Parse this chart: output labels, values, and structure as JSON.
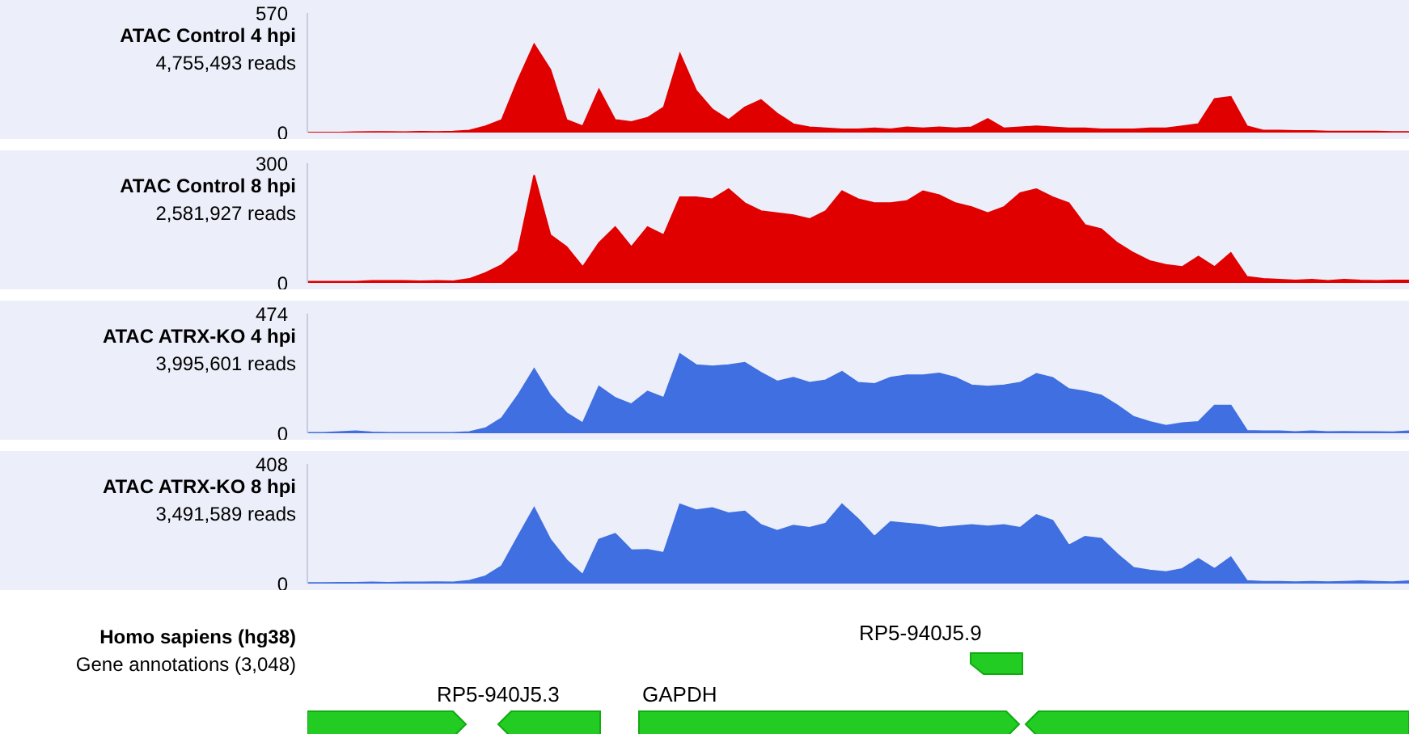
{
  "chart_data": [
    {
      "type": "area",
      "title": "ATAC Control 4 hpi",
      "subtitle": "4,755,493 reads",
      "categories": [
        null,
        null,
        null,
        null,
        null,
        null,
        null,
        null,
        null,
        null,
        null,
        null,
        null,
        null,
        null,
        null,
        null,
        null,
        null,
        null,
        null,
        null,
        null,
        null,
        null,
        null,
        null,
        null,
        null,
        null,
        null,
        null,
        null,
        null,
        null,
        null,
        null,
        null,
        null,
        null,
        null,
        null,
        null,
        null,
        null,
        null,
        null,
        null,
        null,
        null,
        null,
        null,
        null,
        null,
        null,
        null,
        null,
        null,
        null,
        null,
        null,
        null,
        null,
        null,
        null,
        null,
        null,
        null,
        null
      ],
      "series": [
        {
          "color": "#e00000",
          "values": [
            0,
            0,
            0,
            2,
            3,
            3,
            2,
            4,
            3,
            5,
            10,
            30,
            60,
            250,
            420,
            300,
            60,
            30,
            205,
            60,
            50,
            70,
            120,
            375,
            200,
            110,
            60,
            120,
            155,
            90,
            40,
            25,
            20,
            15,
            15,
            20,
            15,
            25,
            20,
            25,
            20,
            25,
            65,
            20,
            25,
            30,
            25,
            20,
            20,
            15,
            15,
            15,
            20,
            20,
            30,
            40,
            160,
            170,
            30,
            10,
            10,
            8,
            8,
            5,
            5,
            5,
            5,
            3,
            3
          ]
        }
      ],
      "ylim": [
        0,
        570
      ],
      "yticks": [
        0,
        570
      ],
      "tick_labels": "y"
    },
    {
      "type": "area",
      "title": "ATAC Control 8 hpi",
      "subtitle": "2,581,927 reads",
      "categories": [
        null,
        null,
        null,
        null,
        null,
        null,
        null,
        null,
        null,
        null,
        null,
        null,
        null,
        null,
        null,
        null,
        null,
        null,
        null,
        null,
        null,
        null,
        null,
        null,
        null,
        null,
        null,
        null,
        null,
        null,
        null,
        null,
        null,
        null,
        null,
        null,
        null,
        null,
        null,
        null,
        null,
        null,
        null,
        null,
        null,
        null,
        null,
        null,
        null,
        null,
        null,
        null,
        null,
        null,
        null,
        null,
        null,
        null,
        null,
        null,
        null,
        null,
        null,
        null,
        null,
        null,
        null,
        null,
        null
      ],
      "series": [
        {
          "color": "#e00000",
          "values": [
            3,
            3,
            3,
            3,
            5,
            5,
            5,
            4,
            5,
            4,
            10,
            25,
            45,
            80,
            270,
            120,
            90,
            40,
            100,
            140,
            90,
            140,
            120,
            215,
            215,
            210,
            235,
            200,
            180,
            175,
            170,
            160,
            180,
            230,
            210,
            200,
            200,
            205,
            230,
            220,
            200,
            190,
            175,
            190,
            225,
            235,
            215,
            200,
            145,
            135,
            100,
            75,
            55,
            45,
            40,
            66,
            40,
            75,
            15,
            10,
            8,
            6,
            8,
            5,
            8,
            6,
            5,
            6,
            6
          ]
        }
      ],
      "ylim": [
        0,
        300
      ],
      "yticks": [
        0,
        300
      ],
      "tick_labels": "y"
    },
    {
      "type": "area",
      "title": "ATAC ATRX-KO 4 hpi",
      "subtitle": "3,995,601 reads",
      "categories": [
        null,
        null,
        null,
        null,
        null,
        null,
        null,
        null,
        null,
        null,
        null,
        null,
        null,
        null,
        null,
        null,
        null,
        null,
        null,
        null,
        null,
        null,
        null,
        null,
        null,
        null,
        null,
        null,
        null,
        null,
        null,
        null,
        null,
        null,
        null,
        null,
        null,
        null,
        null,
        null,
        null,
        null,
        null,
        null,
        null,
        null,
        null,
        null,
        null,
        null,
        null,
        null,
        null,
        null,
        null,
        null,
        null,
        null,
        null,
        null,
        null,
        null,
        null,
        null,
        null,
        null,
        null,
        null,
        null
      ],
      "series": [
        {
          "color": "#3f6fe0",
          "values": [
            2,
            2,
            5,
            8,
            3,
            2,
            2,
            2,
            2,
            2,
            5,
            20,
            60,
            150,
            255,
            150,
            80,
            40,
            185,
            140,
            115,
            165,
            140,
            314,
            270,
            265,
            270,
            279,
            240,
            205,
            220,
            200,
            210,
            244,
            200,
            195,
            220,
            230,
            230,
            237,
            220,
            190,
            185,
            190,
            200,
            235,
            220,
            175,
            165,
            150,
            110,
            65,
            45,
            30,
            40,
            45,
            110,
            110,
            10,
            8,
            8,
            5,
            8,
            5,
            6,
            5,
            5,
            4,
            8
          ]
        }
      ],
      "ylim": [
        0,
        474
      ],
      "yticks": [
        0,
        474
      ],
      "tick_labels": "y"
    },
    {
      "type": "area",
      "title": "ATAC ATRX-KO 8 hpi",
      "subtitle": "3,491,589 reads",
      "categories": [
        null,
        null,
        null,
        null,
        null,
        null,
        null,
        null,
        null,
        null,
        null,
        null,
        null,
        null,
        null,
        null,
        null,
        null,
        null,
        null,
        null,
        null,
        null,
        null,
        null,
        null,
        null,
        null,
        null,
        null,
        null,
        null,
        null,
        null,
        null,
        null,
        null,
        null,
        null,
        null,
        null,
        null,
        null,
        null,
        null,
        null,
        null,
        null,
        null,
        null,
        null,
        null,
        null,
        null,
        null,
        null,
        null,
        null,
        null,
        null,
        null,
        null,
        null,
        null,
        null,
        null,
        null,
        null,
        null
      ],
      "series": [
        {
          "color": "#3f6fe0",
          "values": [
            2,
            2,
            3,
            3,
            4,
            3,
            4,
            4,
            5,
            4,
            10,
            25,
            60,
            160,
            258,
            150,
            80,
            30,
            150,
            170,
            114,
            115,
            105,
            270,
            250,
            258,
            240,
            246,
            200,
            180,
            198,
            190,
            205,
            270,
            220,
            160,
            210,
            205,
            200,
            190,
            195,
            200,
            195,
            200,
            190,
            234,
            215,
            130,
            160,
            153,
            100,
            54,
            45,
            39,
            50,
            84,
            50,
            90,
            9,
            6,
            6,
            5,
            6,
            5,
            6,
            8,
            6,
            5,
            8
          ]
        }
      ],
      "ylim": [
        0,
        408
      ],
      "yticks": [
        0,
        408
      ],
      "tick_labels": "y"
    },
    {
      "type": "other",
      "title": "Homo sapiens (hg38)",
      "subtitle": "Gene annotations (3,048)",
      "annotations": [
        "RP5-940J5.9",
        "RP5-940J5.3",
        "GAPDH"
      ]
    }
  ]
}
